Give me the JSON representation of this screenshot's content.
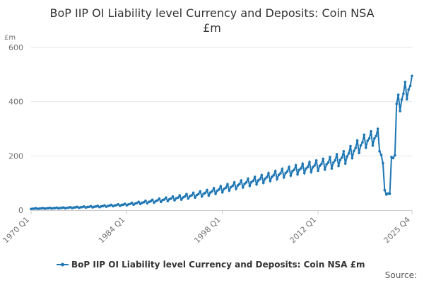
{
  "chart_data": {
    "type": "line",
    "title_line1": "BoP IIP OI Liability level Currency and Deposits: Coin NSA",
    "title_line2": "£m",
    "ylabel": "£m",
    "ylim": [
      0,
      600
    ],
    "yticks": [
      "0",
      "200",
      "400",
      "600"
    ],
    "ytick_values": [
      0,
      200,
      400,
      600
    ],
    "grid": true,
    "x_start_year": 1970,
    "x_end_year": 2025,
    "xticks": [
      {
        "label": "1970 Q1",
        "index": 0
      },
      {
        "label": "1984 Q1",
        "index": 56
      },
      {
        "label": "1998 Q1",
        "index": 112
      },
      {
        "label": "2012 Q1",
        "index": 168
      },
      {
        "label": "2025 Q4",
        "index": 223
      }
    ],
    "series": [
      {
        "name": "BoP IIP OI Liability level Currency and Deposits: Coin NSA £m",
        "color": "#1f77b4",
        "anchors": [
          [
            1970,
            5
          ],
          [
            1975,
            8
          ],
          [
            1980,
            13
          ],
          [
            1984,
            20
          ],
          [
            1988,
            32
          ],
          [
            1992,
            45
          ],
          [
            1996,
            62
          ],
          [
            2000,
            88
          ],
          [
            2004,
            112
          ],
          [
            2008,
            140
          ],
          [
            2012,
            160
          ],
          [
            2014,
            170
          ],
          [
            2016,
            190
          ],
          [
            2018,
            230
          ],
          [
            2019,
            250
          ],
          [
            2020.75,
            265
          ],
          [
            2021.5,
            170
          ],
          [
            2021.75,
            65
          ],
          [
            2022.5,
            58
          ],
          [
            2022.75,
            190
          ],
          [
            2023.25,
            200
          ],
          [
            2023.5,
            380
          ],
          [
            2024,
            390
          ],
          [
            2024.75,
            430
          ],
          [
            2025.75,
            450
          ]
        ],
        "seasonal_amplitude": [
          [
            1970,
            1
          ],
          [
            1984,
            4
          ],
          [
            1998,
            15
          ],
          [
            2010,
            22
          ],
          [
            2016,
            30
          ],
          [
            2020.75,
            35
          ],
          [
            2021.5,
            10
          ],
          [
            2023,
            5
          ],
          [
            2023.5,
            40
          ],
          [
            2025.75,
            45
          ]
        ]
      }
    ],
    "legend": "bottom-center",
    "source_label": "Source:"
  }
}
